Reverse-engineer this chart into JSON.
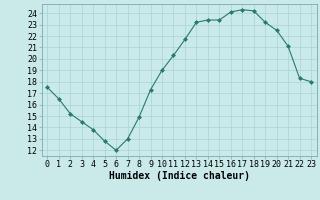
{
  "x": [
    0,
    1,
    2,
    3,
    4,
    5,
    6,
    7,
    8,
    9,
    10,
    11,
    12,
    13,
    14,
    15,
    16,
    17,
    18,
    19,
    20,
    21,
    22,
    23
  ],
  "y": [
    17.5,
    16.5,
    15.2,
    14.5,
    13.8,
    12.8,
    12.0,
    13.0,
    14.9,
    17.3,
    19.0,
    20.3,
    21.7,
    23.2,
    23.4,
    23.4,
    24.1,
    24.3,
    24.2,
    23.2,
    22.5,
    21.1,
    18.3,
    18.0
  ],
  "line_color": "#2a7a6a",
  "marker": "D",
  "marker_size": 2,
  "bg_color": "#caeaea",
  "grid_color": "#aad4d4",
  "xlabel": "Humidex (Indice chaleur)",
  "xlim": [
    -0.5,
    23.5
  ],
  "ylim": [
    11.5,
    24.8
  ],
  "yticks": [
    12,
    13,
    14,
    15,
    16,
    17,
    18,
    19,
    20,
    21,
    22,
    23,
    24
  ],
  "xticks": [
    0,
    1,
    2,
    3,
    4,
    5,
    6,
    7,
    8,
    9,
    10,
    11,
    12,
    13,
    14,
    15,
    16,
    17,
    18,
    19,
    20,
    21,
    22,
    23
  ],
  "xlabel_fontsize": 7,
  "tick_fontsize": 6
}
